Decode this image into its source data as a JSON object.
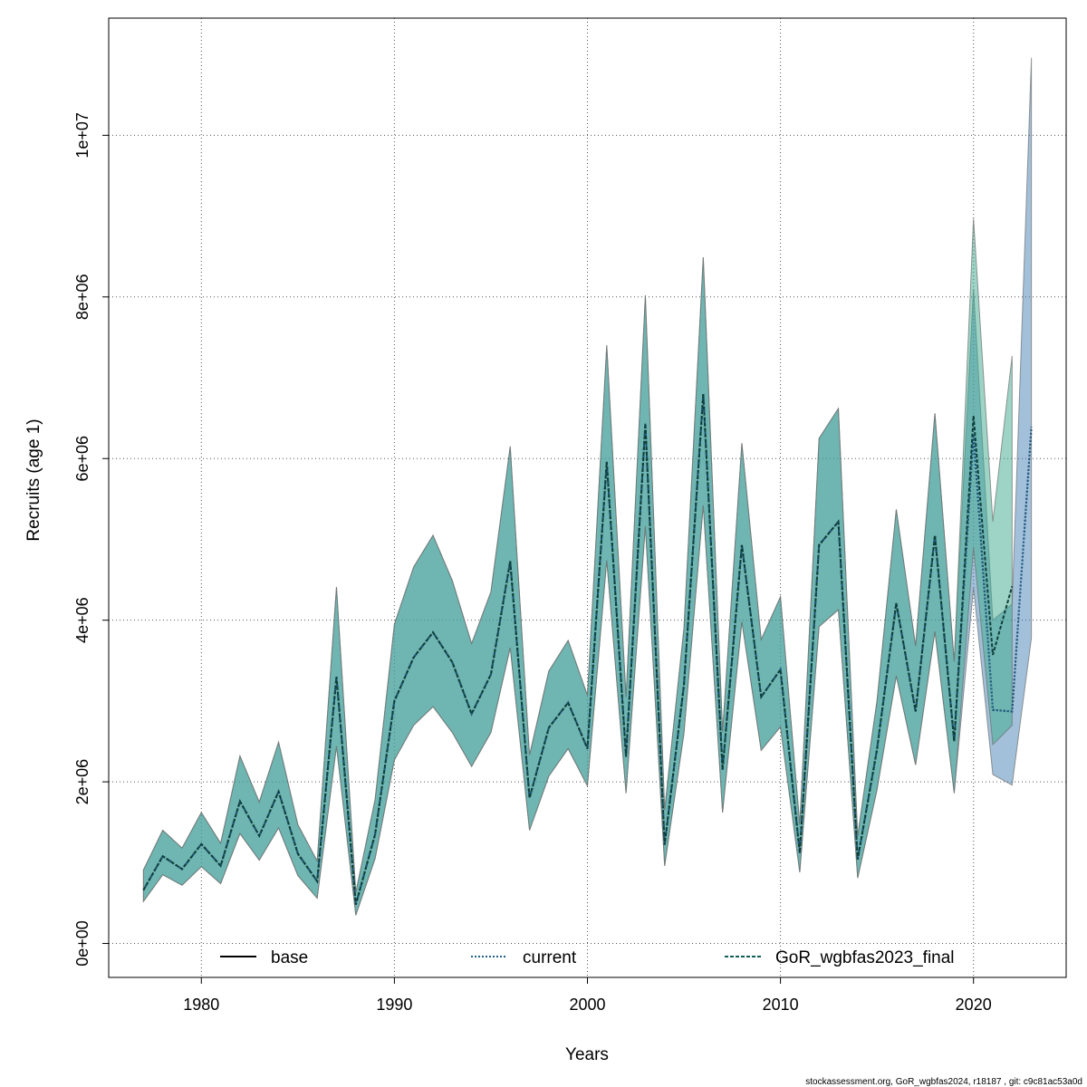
{
  "chart_data": {
    "type": "area",
    "title": "",
    "xlabel": "Years",
    "ylabel": "Recruits (age 1)",
    "xlim": [
      1975.2,
      2024.8
    ],
    "ylim": [
      -420000,
      11450000
    ],
    "x_ticks": [
      1980,
      1990,
      2000,
      2010,
      2020
    ],
    "x_tick_labels": [
      "1980",
      "1990",
      "2000",
      "2010",
      "2020"
    ],
    "y_ticks": [
      0,
      2000000,
      4000000,
      6000000,
      8000000,
      10000000
    ],
    "y_tick_labels": [
      "0e+00",
      "2e+06",
      "4e+06",
      "6e+06",
      "8e+06",
      "1e+07"
    ],
    "grid": true,
    "legend_position": "bottom",
    "colors": {
      "current_band": "#4682b4",
      "gor_band": "#3caa8c",
      "base_line": "#000000",
      "current_line": "#1f5f8b",
      "gor_line": "#0f5f55"
    },
    "series": [
      {
        "name": "base",
        "line_style": "solid",
        "years": [
          1977,
          1978,
          1979,
          1980,
          1981,
          1982,
          1983,
          1984,
          1985,
          1986,
          1987,
          1988,
          1989,
          1990,
          1991,
          1992,
          1993,
          1994,
          1995,
          1996,
          1997,
          1998,
          1999,
          2000,
          2001,
          2002,
          2003,
          2004,
          2005,
          2006,
          2007,
          2008,
          2009,
          2010,
          2011,
          2012,
          2013,
          2014,
          2015,
          2016,
          2017,
          2018,
          2019,
          2020,
          2021,
          2022,
          2023
        ],
        "values": [
          660000,
          1080000,
          920000,
          1230000,
          960000,
          1760000,
          1330000,
          1880000,
          1110000,
          770000,
          3300000,
          480000,
          1350000,
          3000000,
          3540000,
          3850000,
          3480000,
          2840000,
          3330000,
          4730000,
          1800000,
          2670000,
          2980000,
          2410000,
          5960000,
          2310000,
          6430000,
          1220000,
          3200000,
          6800000,
          2150000,
          4930000,
          3050000,
          3390000,
          1120000,
          4930000,
          5220000,
          1040000,
          2400000,
          4210000,
          2870000,
          5050000,
          2500000,
          6300000,
          2890000,
          2870000,
          6390000
        ]
      },
      {
        "name": "current",
        "line_style": "dotted",
        "years": [
          1977,
          1978,
          1979,
          1980,
          1981,
          1982,
          1983,
          1984,
          1985,
          1986,
          1987,
          1988,
          1989,
          1990,
          1991,
          1992,
          1993,
          1994,
          1995,
          1996,
          1997,
          1998,
          1999,
          2000,
          2001,
          2002,
          2003,
          2004,
          2005,
          2006,
          2007,
          2008,
          2009,
          2010,
          2011,
          2012,
          2013,
          2014,
          2015,
          2016,
          2017,
          2018,
          2019,
          2020,
          2021,
          2022,
          2023
        ],
        "values": [
          660000,
          1080000,
          920000,
          1230000,
          960000,
          1760000,
          1330000,
          1880000,
          1110000,
          770000,
          3300000,
          480000,
          1350000,
          3000000,
          3540000,
          3850000,
          3480000,
          2840000,
          3330000,
          4730000,
          1800000,
          2670000,
          2980000,
          2410000,
          5960000,
          2310000,
          6430000,
          1220000,
          3200000,
          6800000,
          2150000,
          4930000,
          3050000,
          3390000,
          1120000,
          4930000,
          5220000,
          1040000,
          2400000,
          4210000,
          2870000,
          5050000,
          2500000,
          6300000,
          2890000,
          2870000,
          6390000
        ],
        "lower": [
          520000,
          850000,
          720000,
          950000,
          740000,
          1360000,
          1030000,
          1430000,
          840000,
          560000,
          2440000,
          350000,
          1050000,
          2270000,
          2700000,
          2930000,
          2610000,
          2190000,
          2610000,
          3660000,
          1400000,
          2070000,
          2410000,
          1950000,
          4740000,
          1860000,
          5160000,
          960000,
          2600000,
          5420000,
          1620000,
          3980000,
          2390000,
          2680000,
          880000,
          3920000,
          4130000,
          810000,
          1900000,
          3310000,
          2210000,
          3860000,
          1860000,
          4400000,
          2090000,
          1960000,
          3780000
        ],
        "upper": [
          910000,
          1400000,
          1180000,
          1620000,
          1240000,
          2320000,
          1750000,
          2490000,
          1470000,
          1020000,
          4410000,
          630000,
          1780000,
          3950000,
          4660000,
          5050000,
          4490000,
          3710000,
          4350000,
          6150000,
          2330000,
          3370000,
          3750000,
          3070000,
          7400000,
          3050000,
          8020000,
          1650000,
          3900000,
          8490000,
          2620000,
          6190000,
          3760000,
          4290000,
          1470000,
          6250000,
          6620000,
          1330000,
          3000000,
          5370000,
          3680000,
          6560000,
          3490000,
          8100000,
          4000000,
          4200000,
          10960000
        ]
      },
      {
        "name": "GoR_wgbfas2023_final",
        "line_style": "dashed",
        "years": [
          1977,
          1978,
          1979,
          1980,
          1981,
          1982,
          1983,
          1984,
          1985,
          1986,
          1987,
          1988,
          1989,
          1990,
          1991,
          1992,
          1993,
          1994,
          1995,
          1996,
          1997,
          1998,
          1999,
          2000,
          2001,
          2002,
          2003,
          2004,
          2005,
          2006,
          2007,
          2008,
          2009,
          2010,
          2011,
          2012,
          2013,
          2014,
          2015,
          2016,
          2017,
          2018,
          2019,
          2020,
          2021,
          2022
        ],
        "values": [
          660000,
          1080000,
          920000,
          1230000,
          960000,
          1760000,
          1330000,
          1880000,
          1110000,
          770000,
          3300000,
          480000,
          1350000,
          3000000,
          3540000,
          3850000,
          3480000,
          2840000,
          3330000,
          4730000,
          1800000,
          2670000,
          2980000,
          2410000,
          5960000,
          2310000,
          6430000,
          1220000,
          3200000,
          6800000,
          2150000,
          4930000,
          3050000,
          3390000,
          1120000,
          4930000,
          5220000,
          1040000,
          2400000,
          4210000,
          2870000,
          5050000,
          2500000,
          6530000,
          3570000,
          4420000
        ],
        "lower": [
          520000,
          850000,
          720000,
          950000,
          740000,
          1360000,
          1030000,
          1430000,
          840000,
          560000,
          2440000,
          350000,
          1050000,
          2270000,
          2700000,
          2930000,
          2610000,
          2190000,
          2610000,
          3660000,
          1400000,
          2070000,
          2410000,
          1950000,
          4740000,
          1860000,
          5160000,
          960000,
          2600000,
          5420000,
          1620000,
          3980000,
          2390000,
          2680000,
          880000,
          3920000,
          4130000,
          810000,
          1900000,
          3310000,
          2210000,
          3860000,
          1860000,
          4900000,
          2460000,
          2700000
        ],
        "upper": [
          910000,
          1400000,
          1180000,
          1620000,
          1240000,
          2320000,
          1750000,
          2490000,
          1470000,
          1020000,
          4410000,
          630000,
          1780000,
          3950000,
          4660000,
          5050000,
          4490000,
          3710000,
          4350000,
          6150000,
          2330000,
          3370000,
          3750000,
          3070000,
          7400000,
          3050000,
          8020000,
          1650000,
          3900000,
          8490000,
          2620000,
          6190000,
          3760000,
          4290000,
          1470000,
          6250000,
          6620000,
          1330000,
          3000000,
          5370000,
          3680000,
          6560000,
          3490000,
          8970000,
          5220000,
          7270000
        ]
      }
    ]
  },
  "footer": "stockassessment.org, GoR_wgbfas2024, r18187 , git: c9c81ac53a0d"
}
